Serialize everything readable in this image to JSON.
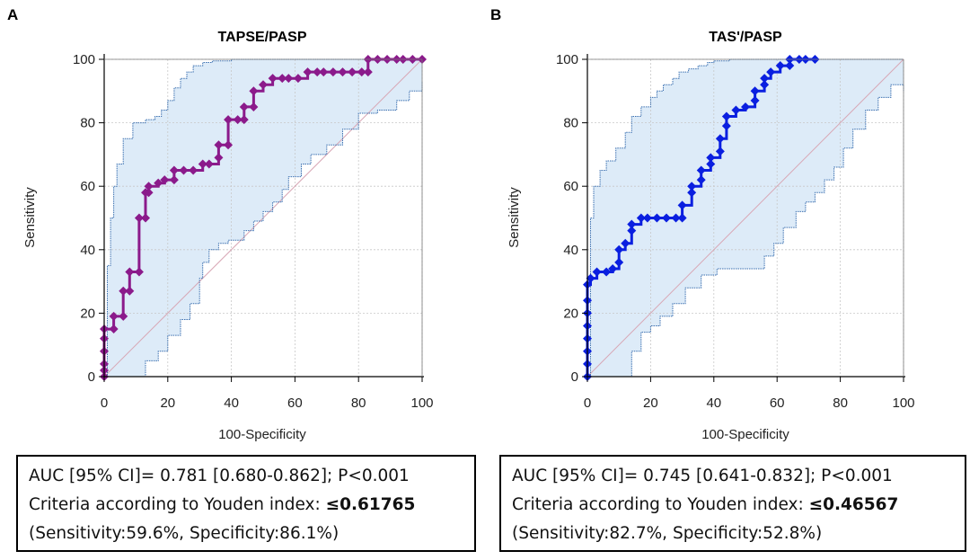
{
  "chart_data": [
    {
      "panel": "A",
      "type": "line",
      "subtype": "roc",
      "title": "TAPSE/PASP",
      "xlabel": "100-Specificity",
      "ylabel": "Sensitivity",
      "xlim": [
        0,
        100
      ],
      "ylim": [
        0,
        100
      ],
      "xticks": [
        0,
        20,
        40,
        60,
        80,
        100
      ],
      "yticks": [
        0,
        20,
        40,
        60,
        80,
        100
      ],
      "grid": true,
      "color": "#8B1A8B",
      "series": [
        {
          "name": "ROC",
          "x": [
            0,
            0,
            0,
            0,
            0,
            0,
            3,
            3,
            6,
            6,
            8,
            8,
            11,
            11,
            13,
            13,
            14,
            14,
            17,
            19,
            22,
            22,
            25,
            28,
            31,
            33,
            36,
            36,
            39,
            39,
            42,
            44,
            44,
            47,
            47,
            50,
            53,
            56,
            58,
            61,
            64,
            67,
            69,
            72,
            75,
            78,
            81,
            83,
            83,
            86,
            89,
            92,
            94,
            97,
            100
          ],
          "y": [
            0,
            2,
            4,
            8,
            12,
            15,
            15,
            19,
            19,
            27,
            27,
            33,
            33,
            50,
            50,
            58,
            58,
            60,
            61,
            62,
            62,
            65,
            65,
            65,
            67,
            67,
            69,
            73,
            73,
            81,
            81,
            81,
            85,
            85,
            90,
            92,
            94,
            94,
            94,
            94,
            96,
            96,
            96,
            96,
            96,
            96,
            96,
            96,
            100,
            100,
            100,
            100,
            100,
            100,
            100
          ]
        },
        {
          "name": "Upper 95% CI",
          "x": [
            0,
            1,
            2,
            3,
            4,
            6,
            9,
            13,
            16,
            18,
            20,
            22,
            24,
            26,
            28,
            31,
            34,
            40,
            50,
            60,
            70,
            80,
            90,
            100
          ],
          "y": [
            0,
            35,
            50,
            60,
            67,
            75,
            80,
            81,
            82,
            84,
            87,
            91,
            94,
            96,
            98,
            99,
            99.5,
            100,
            100,
            100,
            100,
            100,
            100,
            100
          ]
        },
        {
          "name": "Lower 95% CI",
          "x": [
            0,
            10,
            13,
            17,
            20,
            24,
            27,
            30,
            31,
            33,
            36,
            39,
            44,
            47,
            50,
            53,
            56,
            58,
            62,
            65,
            70,
            75,
            80,
            86,
            92,
            96,
            100
          ],
          "y": [
            0,
            0,
            5,
            8,
            13,
            18,
            23,
            31,
            36,
            40,
            42,
            43,
            46,
            49,
            52,
            55,
            59,
            63,
            67,
            70,
            73,
            78,
            83,
            84,
            87,
            90,
            93
          ]
        }
      ]
    },
    {
      "panel": "B",
      "type": "line",
      "subtype": "roc",
      "title": "TAS'/PASP",
      "xlabel": "100-Specificity",
      "ylabel": "Sensitivity",
      "xlim": [
        0,
        100
      ],
      "ylim": [
        0,
        100
      ],
      "xticks": [
        0,
        20,
        40,
        60,
        80,
        100
      ],
      "yticks": [
        0,
        20,
        40,
        60,
        80,
        100
      ],
      "grid": true,
      "color": "#0A1FE0",
      "series": [
        {
          "name": "ROC",
          "x": [
            0,
            0,
            0,
            0,
            0,
            0,
            0,
            0,
            1,
            3,
            6,
            8,
            10,
            10,
            12,
            14,
            14,
            17,
            19,
            22,
            25,
            28,
            30,
            30,
            33,
            33,
            36,
            36,
            39,
            39,
            42,
            42,
            44,
            44,
            47,
            50,
            53,
            53,
            56,
            56,
            58,
            61,
            64,
            64,
            67,
            69,
            72
          ],
          "y": [
            0,
            4,
            8,
            12,
            16,
            20,
            24,
            29,
            31,
            33,
            33,
            34,
            36,
            40,
            42,
            46,
            48,
            50,
            50,
            50,
            50,
            50,
            50,
            54,
            58,
            60,
            62,
            65,
            67,
            69,
            71,
            75,
            79,
            82,
            84,
            85,
            87,
            90,
            92,
            94,
            96,
            98,
            98,
            100,
            100,
            100,
            100
          ]
        },
        {
          "name": "Upper 95% CI",
          "x": [
            0,
            1,
            2,
            4,
            6,
            9,
            12,
            14,
            17,
            20,
            22,
            24,
            27,
            29,
            32,
            35,
            38,
            40,
            45,
            50,
            60,
            70,
            80,
            90,
            100
          ],
          "y": [
            0,
            50,
            60,
            65,
            68,
            72,
            77,
            82,
            85,
            88,
            90,
            92,
            94,
            96,
            97,
            98,
            99,
            99.5,
            100,
            100,
            100,
            100,
            100,
            100,
            100
          ]
        },
        {
          "name": "Lower 95% CI",
          "x": [
            0,
            12,
            14,
            17,
            20,
            23,
            27,
            31,
            36,
            41,
            47,
            53,
            56,
            59,
            62,
            66,
            69,
            72,
            75,
            78,
            81,
            84,
            88,
            92,
            96,
            100
          ],
          "y": [
            0,
            0,
            8,
            14,
            16,
            19,
            23,
            28,
            32,
            34,
            34,
            34,
            38,
            42,
            47,
            52,
            55,
            58,
            62,
            66,
            72,
            78,
            84,
            88,
            92,
            90
          ]
        }
      ]
    }
  ],
  "panels": [
    {
      "letter": "A",
      "stats": {
        "line1": "AUC [95% CI]= 0.781 [0.680-0.862]; P<0.001",
        "line2_prefix": "Criteria according to Youden index: ",
        "line2_value": "≤0.61765",
        "line3": "(Sensitivity:59.6%, Specificity:86.1%)"
      }
    },
    {
      "letter": "B",
      "stats": {
        "line1": "AUC [95% CI]= 0.745 [0.641-0.832]; P<0.001",
        "line2_prefix": "Criteria according to Youden index: ",
        "line2_value": "≤0.46567",
        "line3": "(Sensitivity:82.7%, Specificity:52.8%)"
      }
    }
  ],
  "colors": {
    "ci_fill": "#DDEBF8",
    "ci_line": "#3A6FB0",
    "diagonal": "#D8A7B5",
    "grid": "#C8C8C8"
  }
}
